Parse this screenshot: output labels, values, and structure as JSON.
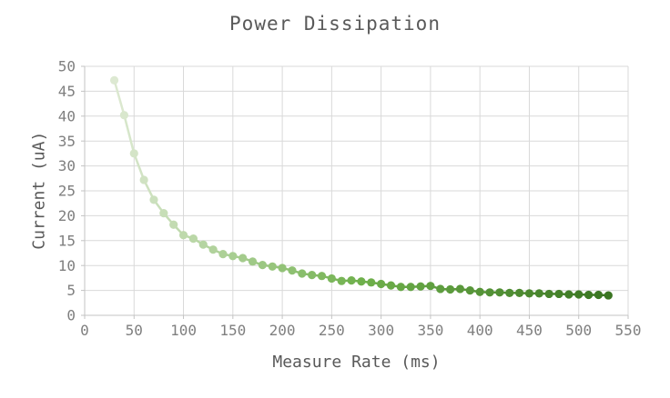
{
  "chart": {
    "title": "Power Dissipation",
    "xlabel": "Measure Rate (ms)",
    "ylabel": "Current (uA)"
  },
  "colors": {
    "background": "#ffffff",
    "grid": "#d9d9d9",
    "axis": "#c3c3c3",
    "tick_label": "#7f7f7f",
    "title_text": "#595959",
    "marker_start": "#dde9d2",
    "marker_mid": "#6fb04c",
    "marker_end": "#3a7522"
  },
  "chart_data": {
    "type": "line",
    "title": "Power Dissipation",
    "xlabel": "Measure Rate (ms)",
    "ylabel": "Current (uA)",
    "legend": false,
    "grid": true,
    "xlim": [
      0,
      550
    ],
    "ylim": [
      0,
      50
    ],
    "x_ticks": [
      0,
      50,
      100,
      150,
      200,
      250,
      300,
      350,
      400,
      450,
      500,
      550
    ],
    "y_ticks": [
      0,
      5,
      10,
      15,
      20,
      25,
      30,
      35,
      40,
      45,
      50
    ],
    "series_style": "line-with-markers, per-point green gradient light-to-dark",
    "x": [
      30,
      40,
      50,
      60,
      70,
      80,
      90,
      100,
      110,
      120,
      130,
      140,
      150,
      160,
      170,
      180,
      190,
      200,
      210,
      220,
      230,
      240,
      250,
      260,
      270,
      280,
      290,
      300,
      310,
      320,
      330,
      340,
      350,
      360,
      370,
      380,
      390,
      400,
      410,
      420,
      430,
      440,
      450,
      460,
      470,
      480,
      490,
      500,
      510,
      520,
      530
    ],
    "y": [
      47.2,
      40.2,
      32.5,
      27.2,
      23.2,
      20.5,
      18.2,
      16.1,
      15.4,
      14.2,
      13.2,
      12.3,
      11.9,
      11.5,
      10.8,
      10.1,
      9.8,
      9.5,
      9.0,
      8.4,
      8.1,
      7.9,
      7.4,
      6.9,
      7.0,
      6.8,
      6.6,
      6.3,
      6.0,
      5.7,
      5.7,
      5.8,
      5.9,
      5.3,
      5.2,
      5.3,
      5.0,
      4.7,
      4.6,
      4.6,
      4.5,
      4.5,
      4.4,
      4.4,
      4.3,
      4.3,
      4.2,
      4.2,
      4.1,
      4.1,
      4.0
    ]
  }
}
